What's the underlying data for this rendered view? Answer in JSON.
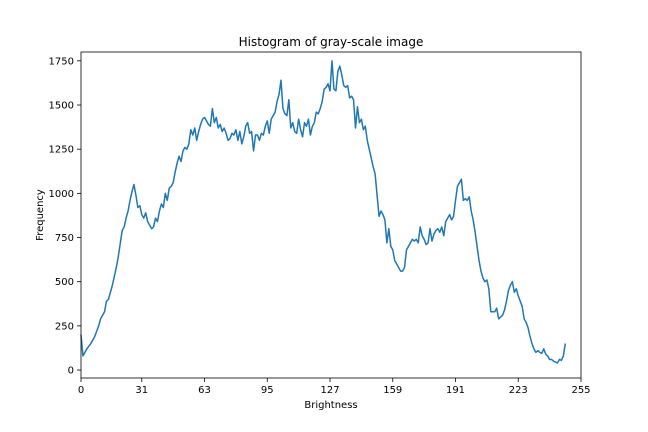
{
  "chart_data": {
    "type": "line",
    "title": "Histogram of gray-scale image",
    "xlabel": "Brightness",
    "ylabel": "Frequency",
    "xlim": [
      0,
      255
    ],
    "ylim": [
      -45,
      1800
    ],
    "xticks": [
      0,
      31,
      63,
      95,
      127,
      159,
      191,
      223,
      255
    ],
    "yticks": [
      0,
      250,
      500,
      750,
      1000,
      1250,
      1500,
      1750
    ],
    "grid": false,
    "series": [
      {
        "color": "#1f77b4",
        "keypoints": [
          [
            0,
            200
          ],
          [
            1,
            80
          ],
          [
            3,
            120
          ],
          [
            5,
            150
          ],
          [
            7,
            190
          ],
          [
            9,
            250
          ],
          [
            10,
            290
          ],
          [
            12,
            330
          ],
          [
            13,
            390
          ],
          [
            14,
            400
          ],
          [
            16,
            480
          ],
          [
            18,
            580
          ],
          [
            19,
            640
          ],
          [
            21,
            790
          ],
          [
            22,
            810
          ],
          [
            23,
            860
          ],
          [
            24,
            900
          ],
          [
            25,
            960
          ],
          [
            26,
            1010
          ],
          [
            27,
            1050
          ],
          [
            28,
            990
          ],
          [
            29,
            920
          ],
          [
            30,
            930
          ],
          [
            31,
            880
          ],
          [
            32,
            860
          ],
          [
            33,
            890
          ],
          [
            34,
            840
          ],
          [
            35,
            820
          ],
          [
            36,
            800
          ],
          [
            37,
            810
          ],
          [
            38,
            860
          ],
          [
            39,
            840
          ],
          [
            40,
            900
          ],
          [
            41,
            940
          ],
          [
            42,
            920
          ],
          [
            43,
            1000
          ],
          [
            44,
            960
          ],
          [
            45,
            1030
          ],
          [
            46,
            1040
          ],
          [
            47,
            1060
          ],
          [
            48,
            1120
          ],
          [
            49,
            1170
          ],
          [
            50,
            1210
          ],
          [
            51,
            1180
          ],
          [
            52,
            1240
          ],
          [
            53,
            1260
          ],
          [
            54,
            1250
          ],
          [
            55,
            1280
          ],
          [
            56,
            1360
          ],
          [
            57,
            1330
          ],
          [
            58,
            1370
          ],
          [
            59,
            1300
          ],
          [
            60,
            1350
          ],
          [
            61,
            1390
          ],
          [
            62,
            1420
          ],
          [
            63,
            1430
          ],
          [
            64,
            1410
          ],
          [
            65,
            1390
          ],
          [
            66,
            1380
          ],
          [
            67,
            1480
          ],
          [
            68,
            1400
          ],
          [
            69,
            1430
          ],
          [
            70,
            1370
          ],
          [
            71,
            1390
          ],
          [
            72,
            1350
          ],
          [
            73,
            1370
          ],
          [
            74,
            1340
          ],
          [
            75,
            1300
          ],
          [
            76,
            1310
          ],
          [
            77,
            1340
          ],
          [
            78,
            1330
          ],
          [
            79,
            1360
          ],
          [
            80,
            1300
          ],
          [
            81,
            1350
          ],
          [
            82,
            1280
          ],
          [
            83,
            1320
          ],
          [
            84,
            1380
          ],
          [
            85,
            1400
          ],
          [
            86,
            1340
          ],
          [
            87,
            1350
          ],
          [
            88,
            1240
          ],
          [
            89,
            1330
          ],
          [
            90,
            1330
          ],
          [
            91,
            1300
          ],
          [
            92,
            1340
          ],
          [
            93,
            1330
          ],
          [
            94,
            1380
          ],
          [
            95,
            1410
          ],
          [
            96,
            1340
          ],
          [
            97,
            1420
          ],
          [
            98,
            1440
          ],
          [
            99,
            1460
          ],
          [
            100,
            1520
          ],
          [
            101,
            1560
          ],
          [
            102,
            1640
          ],
          [
            103,
            1480
          ],
          [
            104,
            1450
          ],
          [
            105,
            1440
          ],
          [
            106,
            1530
          ],
          [
            107,
            1370
          ],
          [
            108,
            1400
          ],
          [
            109,
            1350
          ],
          [
            110,
            1340
          ],
          [
            111,
            1420
          ],
          [
            112,
            1360
          ],
          [
            113,
            1320
          ],
          [
            114,
            1400
          ],
          [
            115,
            1380
          ],
          [
            116,
            1420
          ],
          [
            117,
            1330
          ],
          [
            118,
            1380
          ],
          [
            119,
            1400
          ],
          [
            120,
            1460
          ],
          [
            121,
            1450
          ],
          [
            122,
            1480
          ],
          [
            123,
            1520
          ],
          [
            124,
            1590
          ],
          [
            125,
            1600
          ],
          [
            126,
            1620
          ],
          [
            127,
            1580
          ],
          [
            128,
            1750
          ],
          [
            129,
            1590
          ],
          [
            130,
            1580
          ],
          [
            131,
            1690
          ],
          [
            132,
            1720
          ],
          [
            133,
            1670
          ],
          [
            134,
            1610
          ],
          [
            135,
            1600
          ],
          [
            136,
            1610
          ],
          [
            137,
            1540
          ],
          [
            138,
            1550
          ],
          [
            139,
            1530
          ],
          [
            140,
            1370
          ],
          [
            141,
            1490
          ],
          [
            142,
            1400
          ],
          [
            143,
            1420
          ],
          [
            144,
            1360
          ],
          [
            145,
            1380
          ],
          [
            146,
            1300
          ],
          [
            147,
            1250
          ],
          [
            148,
            1200
          ],
          [
            149,
            1150
          ],
          [
            150,
            1110
          ],
          [
            151,
            990
          ],
          [
            152,
            870
          ],
          [
            153,
            900
          ],
          [
            154,
            880
          ],
          [
            155,
            850
          ],
          [
            156,
            720
          ],
          [
            157,
            800
          ],
          [
            158,
            700
          ],
          [
            159,
            680
          ],
          [
            160,
            620
          ],
          [
            161,
            600
          ],
          [
            162,
            580
          ],
          [
            163,
            560
          ],
          [
            164,
            560
          ],
          [
            165,
            580
          ],
          [
            166,
            680
          ],
          [
            167,
            700
          ],
          [
            168,
            720
          ],
          [
            169,
            740
          ],
          [
            170,
            730
          ],
          [
            171,
            740
          ],
          [
            172,
            720
          ],
          [
            173,
            810
          ],
          [
            174,
            760
          ],
          [
            175,
            740
          ],
          [
            176,
            710
          ],
          [
            177,
            720
          ],
          [
            178,
            800
          ],
          [
            179,
            730
          ],
          [
            180,
            770
          ],
          [
            181,
            790
          ],
          [
            182,
            800
          ],
          [
            183,
            780
          ],
          [
            184,
            810
          ],
          [
            185,
            760
          ],
          [
            186,
            840
          ],
          [
            187,
            860
          ],
          [
            188,
            880
          ],
          [
            189,
            850
          ],
          [
            190,
            870
          ],
          [
            191,
            960
          ],
          [
            192,
            1040
          ],
          [
            193,
            1060
          ],
          [
            194,
            1080
          ],
          [
            195,
            960
          ],
          [
            196,
            970
          ],
          [
            197,
            960
          ],
          [
            198,
            980
          ],
          [
            199,
            900
          ],
          [
            200,
            850
          ],
          [
            201,
            780
          ],
          [
            202,
            700
          ],
          [
            203,
            620
          ],
          [
            204,
            560
          ],
          [
            205,
            520
          ],
          [
            206,
            500
          ],
          [
            207,
            510
          ],
          [
            208,
            460
          ],
          [
            209,
            330
          ],
          [
            210,
            330
          ],
          [
            211,
            330
          ],
          [
            212,
            350
          ],
          [
            213,
            290
          ],
          [
            214,
            300
          ],
          [
            215,
            310
          ],
          [
            216,
            340
          ],
          [
            217,
            390
          ],
          [
            218,
            450
          ],
          [
            219,
            480
          ],
          [
            220,
            500
          ],
          [
            221,
            440
          ],
          [
            222,
            460
          ],
          [
            223,
            420
          ],
          [
            224,
            390
          ],
          [
            225,
            360
          ],
          [
            226,
            290
          ],
          [
            227,
            270
          ],
          [
            228,
            240
          ],
          [
            229,
            190
          ],
          [
            230,
            150
          ],
          [
            231,
            120
          ],
          [
            232,
            100
          ],
          [
            233,
            110
          ],
          [
            234,
            100
          ],
          [
            235,
            95
          ],
          [
            236,
            120
          ],
          [
            237,
            90
          ],
          [
            238,
            80
          ],
          [
            239,
            60
          ],
          [
            240,
            60
          ],
          [
            241,
            50
          ],
          [
            242,
            45
          ],
          [
            243,
            40
          ],
          [
            244,
            60
          ],
          [
            245,
            55
          ],
          [
            246,
            80
          ],
          [
            247,
            150
          ]
        ]
      }
    ]
  }
}
